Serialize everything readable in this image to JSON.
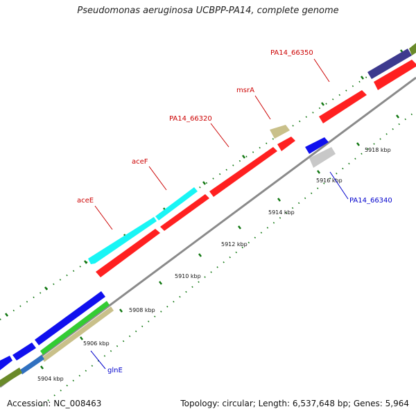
{
  "title": "Pseudomonas aeruginosa UCBPP-PA14, complete genome",
  "footer": {
    "accession": "Accession: NC_008463",
    "topology": "Topology: circular; Length: 6,537,648 bp; Genes: 5,964"
  },
  "scale_labels": [
    "5904 kbp",
    "5906 kbp",
    "5908 kbp",
    "5910 kbp",
    "5912 kbp",
    "5914 kbp",
    "5916 kbp",
    "5918 kbp"
  ],
  "gene_labels": [
    {
      "text": "PA14_66350",
      "color": "#cc0000"
    },
    {
      "text": "msrA",
      "color": "#cc0000"
    },
    {
      "text": "PA14_66320",
      "color": "#cc0000"
    },
    {
      "text": "aceF",
      "color": "#cc0000"
    },
    {
      "text": "aceE",
      "color": "#cc0000"
    },
    {
      "text": "PA14_66340",
      "color": "#0000cc"
    },
    {
      "text": "glnE",
      "color": "#0000cc"
    }
  ],
  "colors": {
    "cds_red": "#ff2020",
    "cds_blue": "#1010ee",
    "cyan": "#19f5f5",
    "khaki": "#c9c08a",
    "gray_block": "#c8c8c8",
    "navy": "#3d3a8e",
    "olive": "#6a8a2a",
    "green": "#33cc33",
    "steelblue": "#3070c0",
    "backbone": "#8a8a8a",
    "tick_green": "#117711"
  }
}
